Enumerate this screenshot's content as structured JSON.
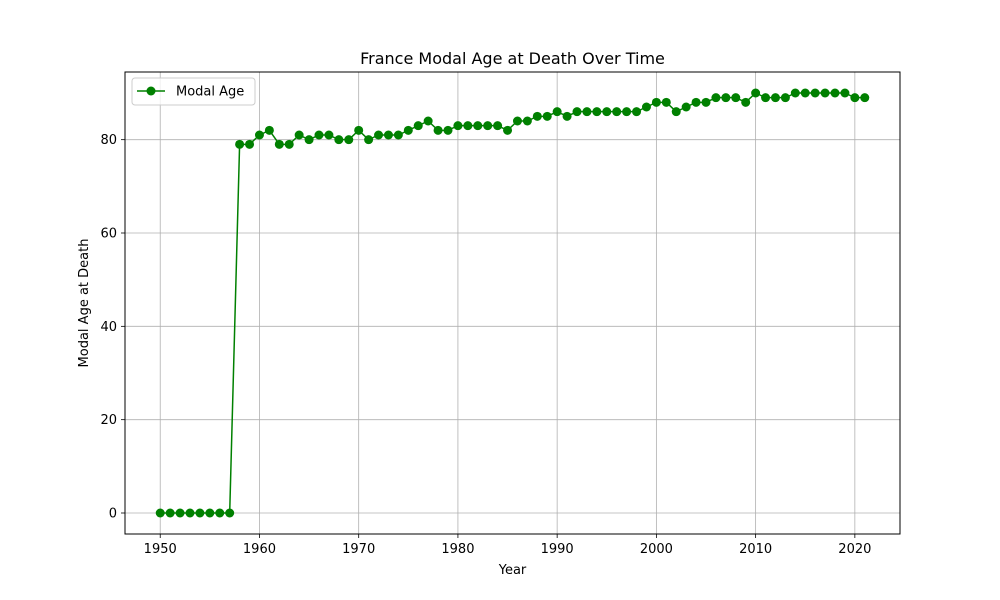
{
  "chart_data": {
    "type": "line",
    "title": "France Modal Age at Death Over Time",
    "xlabel": "Year",
    "ylabel": "Modal Age at Death",
    "xlim": [
      1946.45,
      2024.55
    ],
    "ylim": [
      -4.5,
      94.5
    ],
    "xticks": [
      1950,
      1960,
      1970,
      1980,
      1990,
      2000,
      2010,
      2020
    ],
    "yticks": [
      0,
      20,
      40,
      60,
      80
    ],
    "grid": true,
    "legend_position": "top-left",
    "colors": {
      "series": "#008000",
      "grid": "#b0b0b0",
      "axis": "#000000"
    },
    "series": [
      {
        "name": "Modal Age",
        "marker": "circle",
        "x": [
          1950,
          1951,
          1952,
          1953,
          1954,
          1955,
          1956,
          1957,
          1958,
          1959,
          1960,
          1961,
          1962,
          1963,
          1964,
          1965,
          1966,
          1967,
          1968,
          1969,
          1970,
          1971,
          1972,
          1973,
          1974,
          1975,
          1976,
          1977,
          1978,
          1979,
          1980,
          1981,
          1982,
          1983,
          1984,
          1985,
          1986,
          1987,
          1988,
          1989,
          1990,
          1991,
          1992,
          1993,
          1994,
          1995,
          1996,
          1997,
          1998,
          1999,
          2000,
          2001,
          2002,
          2003,
          2004,
          2005,
          2006,
          2007,
          2008,
          2009,
          2010,
          2011,
          2012,
          2013,
          2014,
          2015,
          2016,
          2017,
          2018,
          2019,
          2020,
          2021
        ],
        "y": [
          0,
          0,
          0,
          0,
          0,
          0,
          0,
          0,
          79,
          79,
          81,
          82,
          79,
          79,
          81,
          80,
          81,
          81,
          80,
          80,
          82,
          80,
          81,
          81,
          81,
          82,
          83,
          84,
          82,
          82,
          83,
          83,
          83,
          83,
          83,
          82,
          84,
          84,
          85,
          85,
          86,
          85,
          86,
          86,
          86,
          86,
          86,
          86,
          86,
          87,
          88,
          88,
          86,
          87,
          88,
          88,
          89,
          89,
          89,
          88,
          90,
          89,
          89,
          89,
          90,
          90,
          90,
          90,
          90,
          90,
          89,
          89
        ]
      }
    ]
  }
}
